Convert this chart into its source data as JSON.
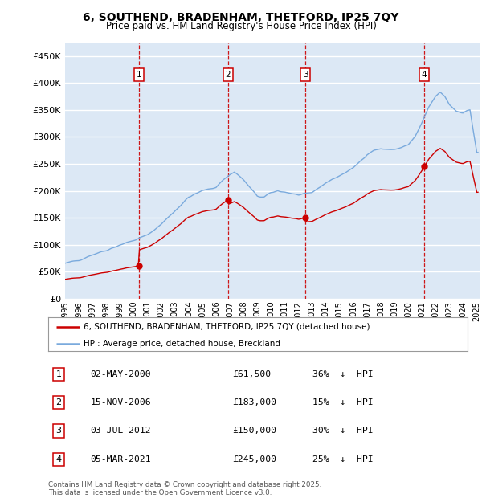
{
  "title": "6, SOUTHEND, BRADENHAM, THETFORD, IP25 7QY",
  "subtitle": "Price paid vs. HM Land Registry's House Price Index (HPI)",
  "bg_color": "#dce8f5",
  "grid_color": "white",
  "sale_color": "#cc0000",
  "hpi_color": "#7aaadd",
  "sale_label": "6, SOUTHEND, BRADENHAM, THETFORD, IP25 7QY (detached house)",
  "hpi_label": "HPI: Average price, detached house, Breckland",
  "ylim": [
    0,
    475000
  ],
  "yticks": [
    0,
    50000,
    100000,
    150000,
    200000,
    250000,
    300000,
    350000,
    400000,
    450000
  ],
  "ytick_labels": [
    "£0",
    "£50K",
    "£100K",
    "£150K",
    "£200K",
    "£250K",
    "£300K",
    "£350K",
    "£400K",
    "£450K"
  ],
  "transactions": [
    {
      "num": 1,
      "date": "02-MAY-2000",
      "price": 61500,
      "pct": "36%",
      "x_year": 2000.37
    },
    {
      "num": 2,
      "date": "15-NOV-2006",
      "price": 183000,
      "pct": "15%",
      "x_year": 2006.88
    },
    {
      "num": 3,
      "date": "03-JUL-2012",
      "price": 150000,
      "pct": "30%",
      "x_year": 2012.5
    },
    {
      "num": 4,
      "date": "05-MAR-2021",
      "price": 245000,
      "pct": "25%",
      "x_year": 2021.17
    }
  ],
  "footer": "Contains HM Land Registry data © Crown copyright and database right 2025.\nThis data is licensed under the Open Government Licence v3.0.",
  "x_tick_years": [
    1995,
    1996,
    1997,
    1998,
    1999,
    2000,
    2001,
    2002,
    2003,
    2004,
    2005,
    2006,
    2007,
    2008,
    2009,
    2010,
    2011,
    2012,
    2013,
    2014,
    2015,
    2016,
    2017,
    2018,
    2019,
    2020,
    2021,
    2022,
    2023,
    2024,
    2025
  ]
}
